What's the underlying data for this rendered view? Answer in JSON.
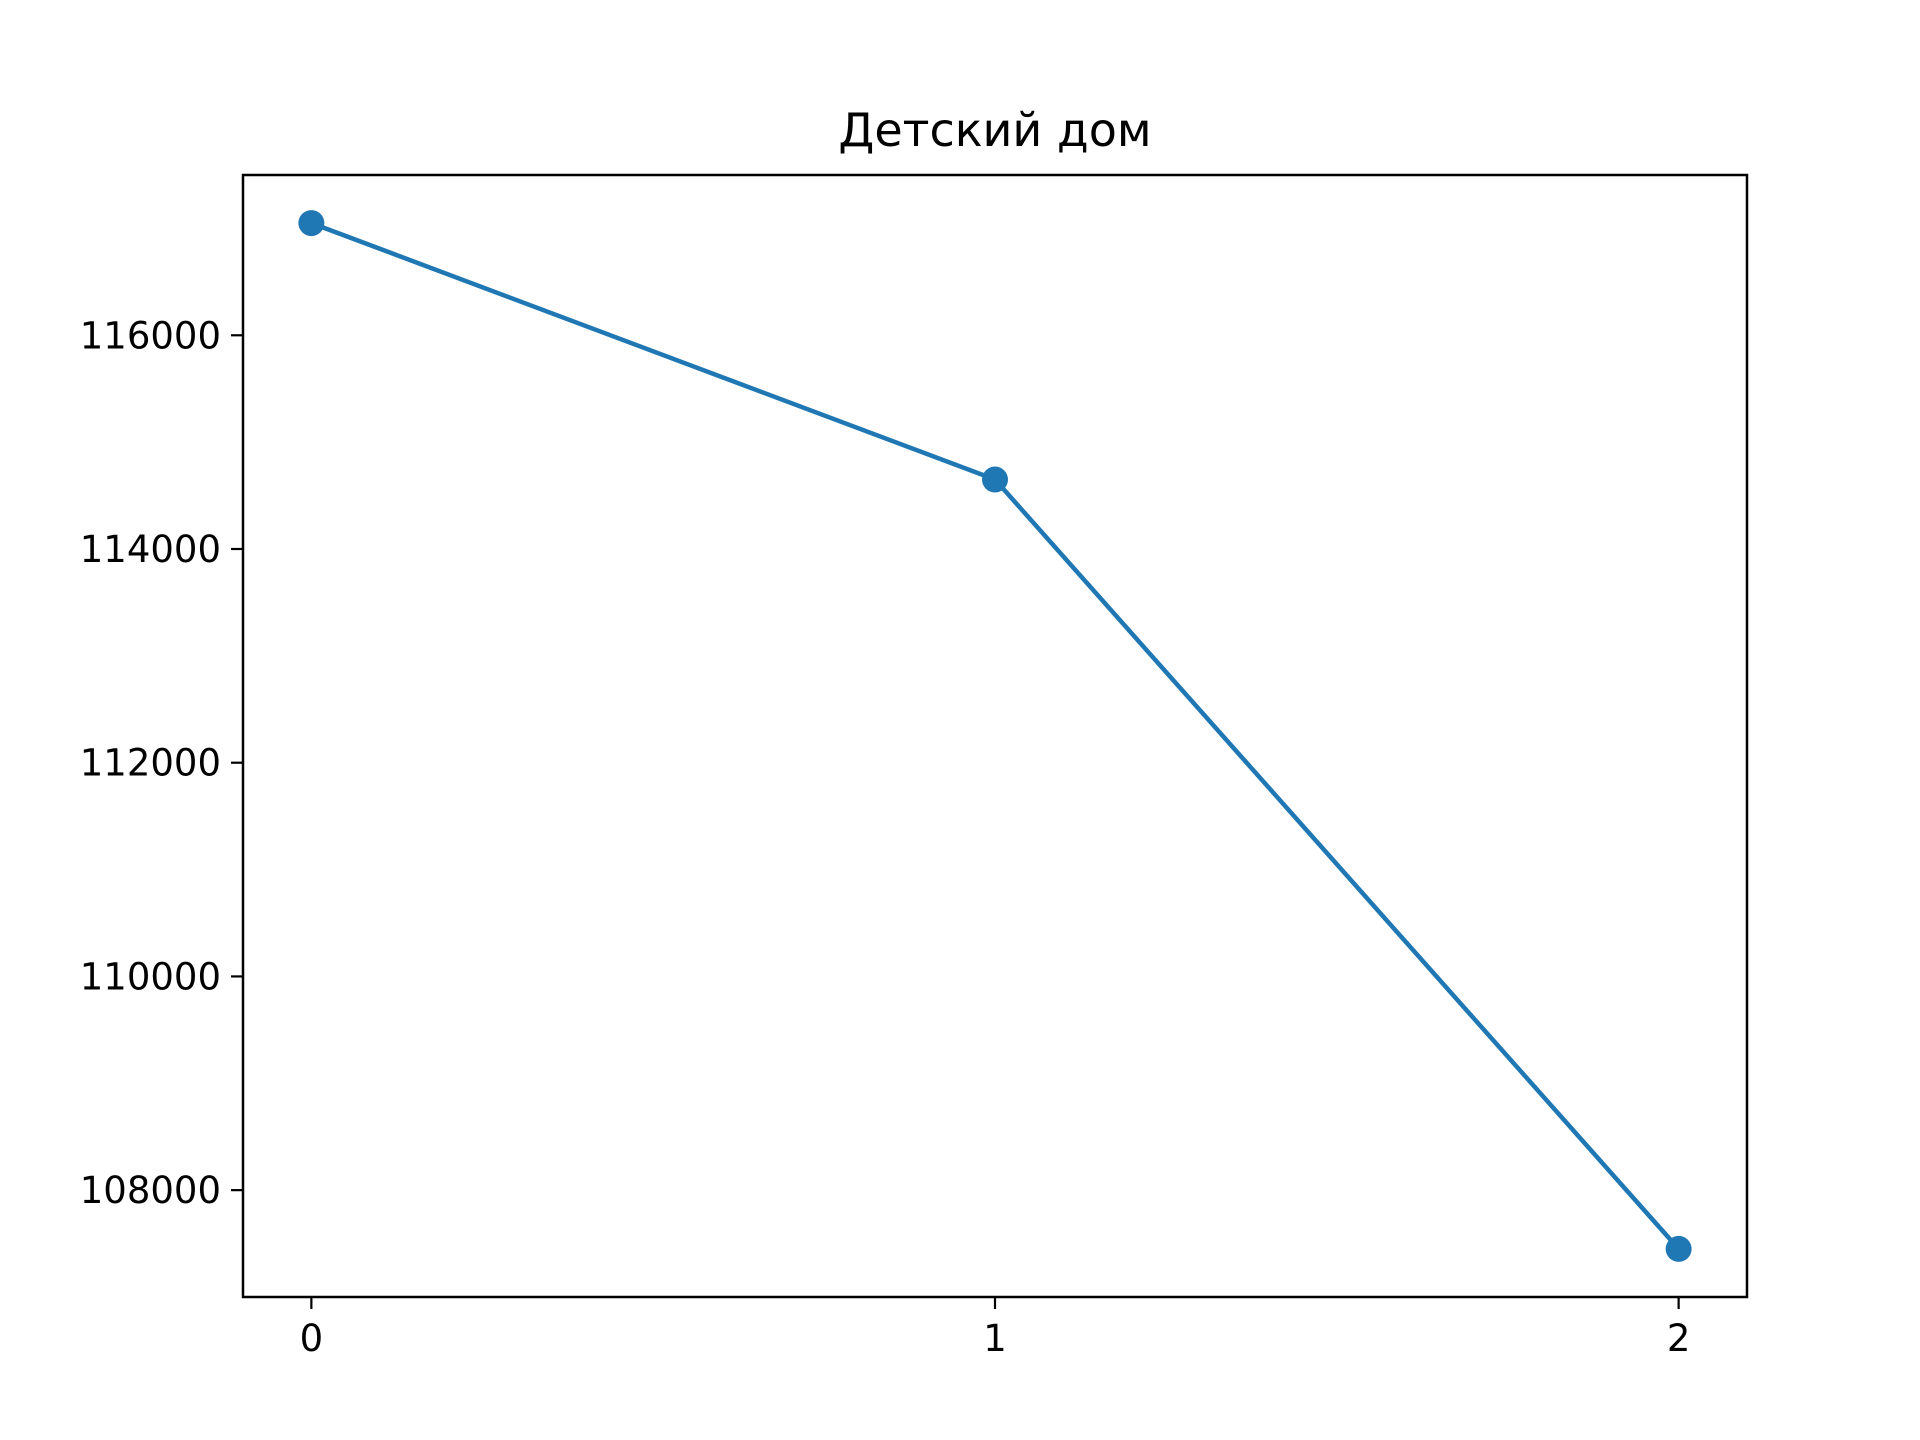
{
  "chart_data": {
    "type": "line",
    "title": "Детский дом",
    "xlabel": "",
    "ylabel": "",
    "x": [
      0,
      1,
      2
    ],
    "series": [
      {
        "values": [
          117050,
          114650,
          107450
        ],
        "color": "#1f77b4",
        "marker": "circle"
      }
    ],
    "xlim": [
      -0.1,
      2.1
    ],
    "ylim": [
      107000,
      117500
    ],
    "xticks": [
      0,
      1,
      2
    ],
    "xtick_labels": [
      "0",
      "1",
      "2"
    ],
    "yticks": [
      108000,
      110000,
      112000,
      114000,
      116000
    ],
    "ytick_labels": [
      "108000",
      "110000",
      "112000",
      "114000",
      "116000"
    ],
    "grid": false,
    "legend": false
  }
}
